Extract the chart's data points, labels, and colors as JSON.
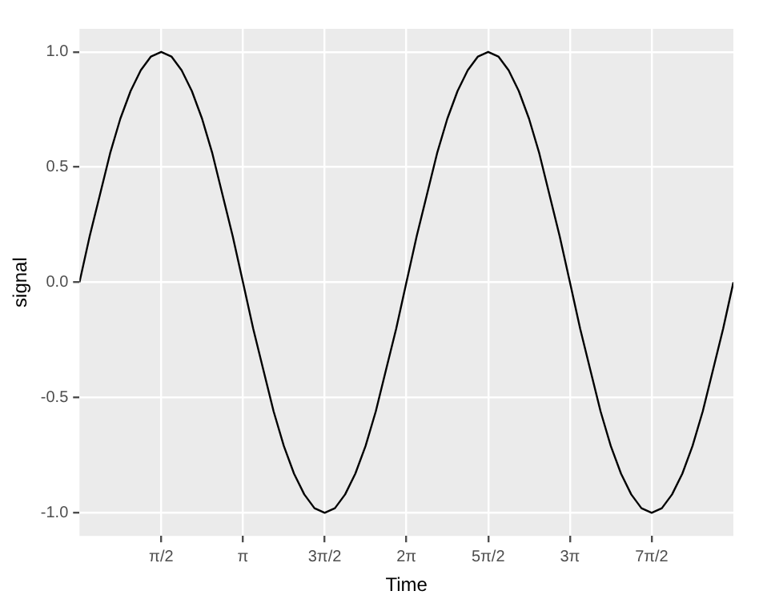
{
  "chart_data": {
    "type": "line",
    "xlabel": "Time",
    "ylabel": "signal",
    "x": [
      0,
      0.196,
      0.393,
      0.589,
      0.785,
      0.982,
      1.178,
      1.374,
      1.571,
      1.767,
      1.963,
      2.16,
      2.356,
      2.553,
      2.749,
      2.945,
      3.142,
      3.338,
      3.534,
      3.731,
      3.927,
      4.123,
      4.32,
      4.516,
      4.712,
      4.909,
      5.105,
      5.301,
      5.498,
      5.694,
      5.89,
      6.087,
      6.283,
      6.48,
      6.676,
      6.872,
      7.069,
      7.265,
      7.461,
      7.658,
      7.854,
      8.05,
      8.247,
      8.443,
      8.639,
      8.836,
      9.032,
      9.228,
      9.425,
      9.621,
      9.817,
      10.014,
      10.21,
      10.407,
      10.603,
      10.799,
      10.996,
      11.192,
      11.388,
      11.585,
      11.781,
      11.977,
      12.174,
      12.37,
      12.566
    ],
    "series": [
      {
        "color": "#000000",
        "values": [
          0,
          0.2,
          0.38,
          0.56,
          0.71,
          0.83,
          0.92,
          0.98,
          1,
          0.98,
          0.92,
          0.83,
          0.71,
          0.56,
          0.38,
          0.2,
          0,
          -0.2,
          -0.38,
          -0.56,
          -0.71,
          -0.83,
          -0.92,
          -0.98,
          -1,
          -0.98,
          -0.92,
          -0.83,
          -0.71,
          -0.56,
          -0.38,
          -0.2,
          0,
          0.2,
          0.38,
          0.56,
          0.71,
          0.83,
          0.92,
          0.98,
          1,
          0.98,
          0.92,
          0.83,
          0.71,
          0.56,
          0.38,
          0.2,
          0,
          -0.2,
          -0.38,
          -0.56,
          -0.71,
          -0.83,
          -0.92,
          -0.98,
          -1,
          -0.98,
          -0.92,
          -0.83,
          -0.71,
          -0.56,
          -0.38,
          -0.2,
          0
        ]
      }
    ],
    "xlim": [
      0,
      12.566
    ],
    "ylim": [
      -1.1,
      1.1
    ],
    "xticks": [
      {
        "value": 1.571,
        "label": "π/2"
      },
      {
        "value": 3.142,
        "label": "π"
      },
      {
        "value": 4.712,
        "label": "3π/2"
      },
      {
        "value": 6.283,
        "label": "2π"
      },
      {
        "value": 7.854,
        "label": "5π/2"
      },
      {
        "value": 9.425,
        "label": "3π"
      },
      {
        "value": 10.996,
        "label": "7π/2"
      }
    ],
    "yticks": [
      {
        "value": -1,
        "label": "-1.0"
      },
      {
        "value": -0.5,
        "label": "-0.5"
      },
      {
        "value": 0,
        "label": "0.0"
      },
      {
        "value": 0.5,
        "label": "0.5"
      },
      {
        "value": 1,
        "label": "1.0"
      }
    ],
    "grid": true,
    "legend": false,
    "marker": "none",
    "line_style": "solid"
  }
}
